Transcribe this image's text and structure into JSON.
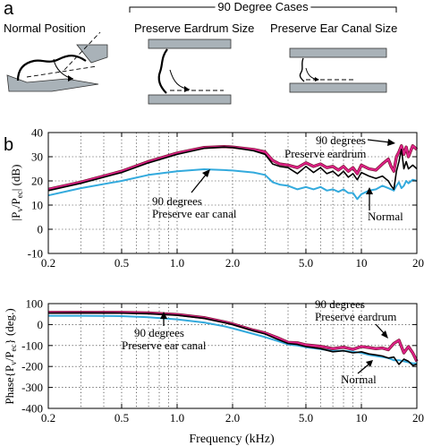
{
  "panel_a": {
    "label": "a",
    "bracket_title": "90 Degree Cases",
    "normal_label": "Normal Position",
    "eardrum_label": "Preserve Eardrum Size",
    "canal_label": "Preserve Ear Canal Size"
  },
  "panel_b": {
    "label": "b",
    "xlabel": "Frequency (kHz)"
  },
  "colors": {
    "normal": "#000000",
    "eardrum": "#e0218a",
    "canal": "#33aadd",
    "dark_red": "#7a1430"
  },
  "chart_data": [
    {
      "type": "line",
      "title": "",
      "xlabel": "",
      "ylabel": "|Pv/Pec| (dB)",
      "ylabel_parts": [
        "|P",
        "v",
        "/P",
        "ec",
        "| (dB)"
      ],
      "xscale": "log",
      "xlim": [
        0.2,
        20
      ],
      "ylim": [
        -10,
        40
      ],
      "grid": true,
      "x_ticks": [
        0.2,
        0.5,
        1.0,
        2.0,
        5.0,
        10,
        20
      ],
      "x_tick_labels": [
        "0.2",
        "0.5",
        "1.0",
        "2.0",
        "5.0",
        "10",
        "20"
      ],
      "y_ticks": [
        -10,
        0,
        10,
        20,
        30,
        40
      ],
      "y_tick_labels": [
        "-10",
        "0",
        "10",
        "20",
        "30",
        "40"
      ],
      "x": [
        0.2,
        0.3,
        0.5,
        0.7,
        1.0,
        1.4,
        1.8,
        2.0,
        2.6,
        3.0,
        3.3,
        3.6,
        4.0,
        4.5,
        5.0,
        5.5,
        6.0,
        6.5,
        7.0,
        7.5,
        8.0,
        8.5,
        9.0,
        9.5,
        10.0,
        11.0,
        12.0,
        13.0,
        14.0,
        14.5,
        15.0,
        15.5,
        16.0,
        16.5,
        17.0,
        17.5,
        18.0,
        19.0,
        20.0
      ],
      "series": [
        {
          "key": "normal",
          "values": [
            16,
            19,
            23.5,
            27.5,
            31,
            33.5,
            34,
            33.8,
            32.5,
            31,
            27,
            26,
            25.5,
            23,
            26,
            23.5,
            25.5,
            23,
            24,
            22,
            24,
            21.5,
            23,
            20.5,
            23.5,
            22,
            21,
            22,
            20,
            18,
            16.5,
            24,
            28,
            33,
            25,
            28,
            25,
            26.5,
            25
          ]
        },
        {
          "key": "eardrum",
          "values": [
            16.5,
            19.5,
            24,
            28,
            31.5,
            33.8,
            34.2,
            34,
            33,
            32,
            28.5,
            27,
            26.5,
            25.5,
            27.5,
            26,
            27,
            25.5,
            26,
            24.5,
            26,
            24,
            25.5,
            23,
            26.5,
            25,
            24.5,
            27,
            29,
            26,
            24,
            30,
            32,
            34.5,
            31,
            34,
            30,
            34.5,
            33
          ]
        },
        {
          "key": "canal",
          "values": [
            14,
            17,
            20,
            22.5,
            24,
            24.8,
            24.5,
            24.3,
            23.5,
            22.5,
            19.5,
            18.5,
            18,
            16.5,
            17.5,
            16.5,
            17.5,
            16,
            16.5,
            15.5,
            16.5,
            15,
            15,
            12.5,
            14.5,
            16,
            16.5,
            18,
            17,
            16.5,
            16,
            18,
            19.5,
            17,
            18,
            20,
            19,
            20.5,
            20
          ]
        }
      ],
      "annotations": [
        {
          "text_lines": [
            "90 degrees",
            "Preserve eardrum"
          ],
          "series": "eardrum"
        },
        {
          "text_lines": [
            "90 degrees",
            "Preserve ear canal"
          ],
          "series": "canal"
        },
        {
          "text_lines": [
            "Normal"
          ],
          "series": "normal"
        }
      ]
    },
    {
      "type": "line",
      "title": "",
      "xlabel": "Frequency (kHz)",
      "ylabel": "Phase{Pv/Pec} (deg.)",
      "ylabel_parts": [
        "Phase{P",
        "v",
        "/P",
        "ec",
        "} (deg.)"
      ],
      "xscale": "log",
      "xlim": [
        0.2,
        20
      ],
      "ylim": [
        -400,
        100
      ],
      "grid": true,
      "x_ticks": [
        0.2,
        0.5,
        1.0,
        2.0,
        5.0,
        10,
        20
      ],
      "x_tick_labels": [
        "0.2",
        "0.5",
        "1.0",
        "2.0",
        "5.0",
        "10",
        "20"
      ],
      "y_ticks": [
        -400,
        -300,
        -200,
        -100,
        0,
        100
      ],
      "y_tick_labels": [
        "-400",
        "-300",
        "-200",
        "-100",
        "0",
        "100"
      ],
      "x": [
        0.2,
        0.3,
        0.5,
        0.7,
        1.0,
        1.4,
        1.8,
        2.0,
        2.6,
        3.0,
        3.5,
        4.0,
        4.5,
        5.0,
        6.0,
        7.0,
        8.0,
        9.0,
        10.0,
        11.0,
        12.0,
        13.0,
        14.0,
        15.0,
        16.0,
        17.0,
        18.0,
        19.0,
        20.0
      ],
      "series": [
        {
          "key": "normal",
          "values": [
            55,
            56,
            55,
            52,
            45,
            30,
            10,
            0,
            -30,
            -45,
            -70,
            -90,
            -95,
            -105,
            -115,
            -130,
            -125,
            -135,
            -130,
            -140,
            -145,
            -150,
            -160,
            -155,
            -190,
            -165,
            -175,
            -195,
            -190
          ]
        },
        {
          "key": "eardrum",
          "values": [
            58,
            58,
            58,
            55,
            48,
            33,
            13,
            3,
            -27,
            -40,
            -63,
            -85,
            -87,
            -97,
            -104,
            -115,
            -108,
            -118,
            -105,
            -110,
            -115,
            -112,
            -120,
            -90,
            -75,
            -135,
            -105,
            -135,
            -175
          ]
        },
        {
          "key": "canal",
          "values": [
            42,
            42,
            40,
            35,
            25,
            10,
            -8,
            -18,
            -45,
            -60,
            -78,
            -95,
            -100,
            -108,
            -117,
            -126,
            -125,
            -130,
            -135,
            -145,
            -150,
            -155,
            -160,
            -170,
            -170,
            -175,
            -180,
            -185,
            -185
          ]
        }
      ],
      "annotations": [
        {
          "text_lines": [
            "90 degrees",
            "Preserve eardrum"
          ],
          "series": "eardrum"
        },
        {
          "text_lines": [
            "90 degrees",
            "Preserve ear canal"
          ],
          "series": "canal"
        },
        {
          "text_lines": [
            "Normal"
          ],
          "series": "normal"
        }
      ]
    }
  ]
}
